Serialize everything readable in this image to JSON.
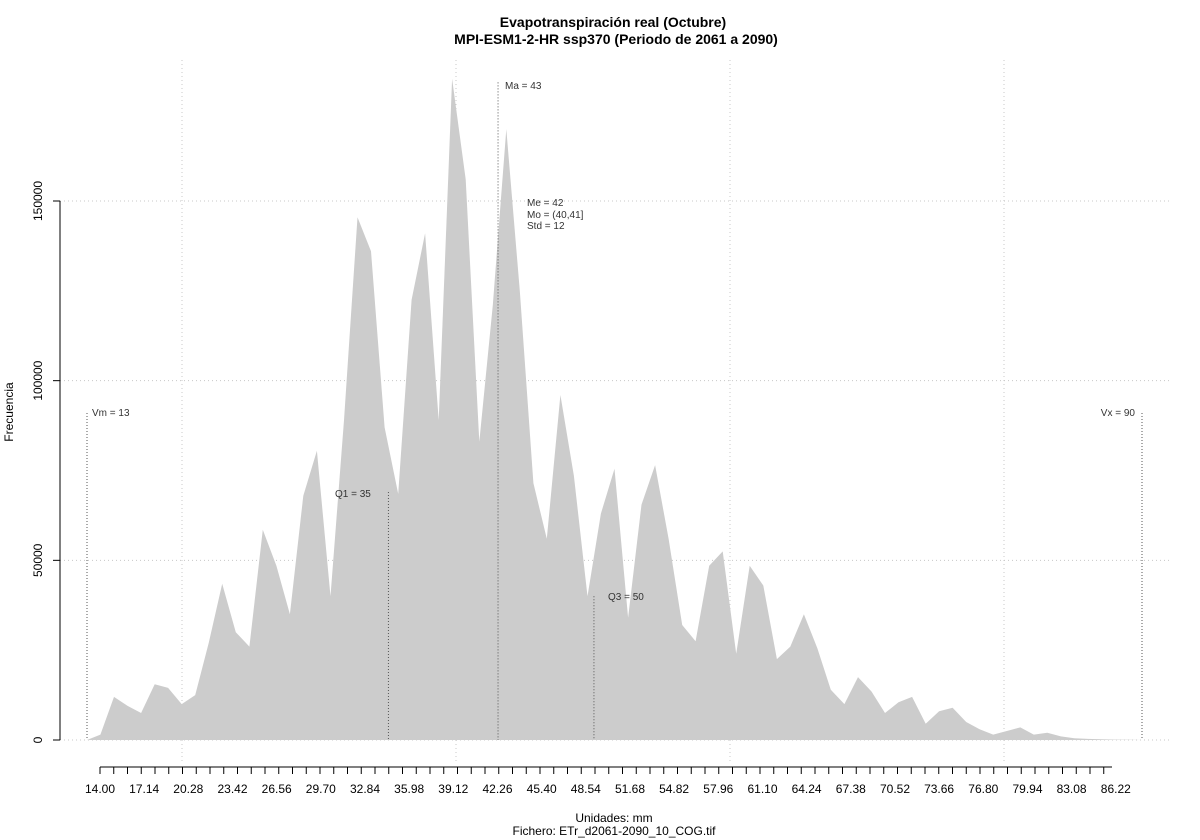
{
  "chart_data": {
    "type": "area",
    "title": "Evapotranspiración real (Octubre)",
    "subtitle": "MPI-ESM1-2-HR ssp370 (Periodo de 2061 a 2090)",
    "xlabel": "Unidades: mm",
    "file_label": "Fichero: ETr_d2061-2090_10_COG.tif",
    "ylabel": "Frecuencia",
    "xlim": [
      13,
      90
    ],
    "ylim": [
      0,
      180000
    ],
    "x_ticks": [
      "14.00",
      "17.14",
      "20.28",
      "23.42",
      "26.56",
      "29.70",
      "32.84",
      "35.98",
      "39.12",
      "42.26",
      "45.40",
      "48.54",
      "51.68",
      "54.82",
      "57.96",
      "61.10",
      "64.24",
      "67.38",
      "70.52",
      "73.66",
      "76.80",
      "79.94",
      "83.08",
      "86.22"
    ],
    "y_ticks": [
      0,
      50000,
      100000,
      150000
    ],
    "y_tick_labels": [
      "0",
      "50000",
      "100000",
      "150000"
    ],
    "grid": true,
    "fill_color": "#cccccc",
    "x": [
      13.0,
      13.98,
      14.97,
      15.96,
      16.95,
      17.94,
      18.92,
      19.91,
      20.9,
      21.88,
      22.87,
      23.86,
      24.85,
      25.83,
      26.82,
      27.81,
      28.79,
      29.78,
      30.77,
      31.76,
      32.74,
      33.73,
      34.72,
      35.71,
      36.69,
      37.68,
      38.67,
      39.65,
      40.64,
      41.63,
      42.62,
      43.6,
      44.59,
      45.58,
      46.56,
      47.55,
      48.54,
      49.53,
      50.51,
      51.5,
      52.49,
      53.47,
      54.46,
      55.45,
      56.44,
      57.42,
      58.41,
      59.4,
      60.38,
      61.37,
      62.36,
      63.35,
      64.33,
      65.32,
      66.31,
      67.29,
      68.28,
      69.27,
      70.26,
      71.24,
      72.23,
      73.22,
      74.21,
      75.19,
      76.18,
      77.17,
      78.15,
      79.14,
      80.13,
      81.12,
      82.1,
      83.09,
      84.08,
      85.06,
      86.05,
      87.04,
      88.03,
      89.01,
      90.0
    ],
    "values": [
      0,
      1500,
      12000,
      9500,
      7500,
      15500,
      14500,
      10000,
      12500,
      27000,
      43500,
      30000,
      26000,
      58500,
      48500,
      35000,
      68000,
      80500,
      40000,
      89000,
      145500,
      136000,
      87000,
      68500,
      122500,
      141000,
      89000,
      184000,
      156000,
      83000,
      121000,
      170000,
      125000,
      71500,
      56000,
      96000,
      73500,
      40000,
      63000,
      75500,
      34000,
      65500,
      76500,
      56000,
      32000,
      27500,
      48500,
      52500,
      24000,
      48500,
      43000,
      22500,
      26000,
      35000,
      25500,
      14000,
      10000,
      17500,
      13500,
      7500,
      10500,
      12000,
      4500,
      8000,
      9000,
      5000,
      3000,
      1500,
      2500,
      3500,
      1500,
      2000,
      1000,
      500,
      300,
      200,
      100,
      50,
      0
    ],
    "annotations": {
      "ma": {
        "label": "Ma = 43",
        "x": 43,
        "y": 183000
      },
      "stats": [
        "Me = 42",
        "Mo = (40,41]",
        "Std = 12"
      ],
      "vm": {
        "label": "Vm = 13",
        "x": 13,
        "y": 91000
      },
      "vx": {
        "label": "Vx = 90",
        "x": 90,
        "y": 91000
      },
      "q1": {
        "label": "Q1 = 35",
        "x": 35,
        "y": 69000
      },
      "q3": {
        "label": "Q3 = 50",
        "x": 50,
        "y": 40000
      }
    }
  }
}
